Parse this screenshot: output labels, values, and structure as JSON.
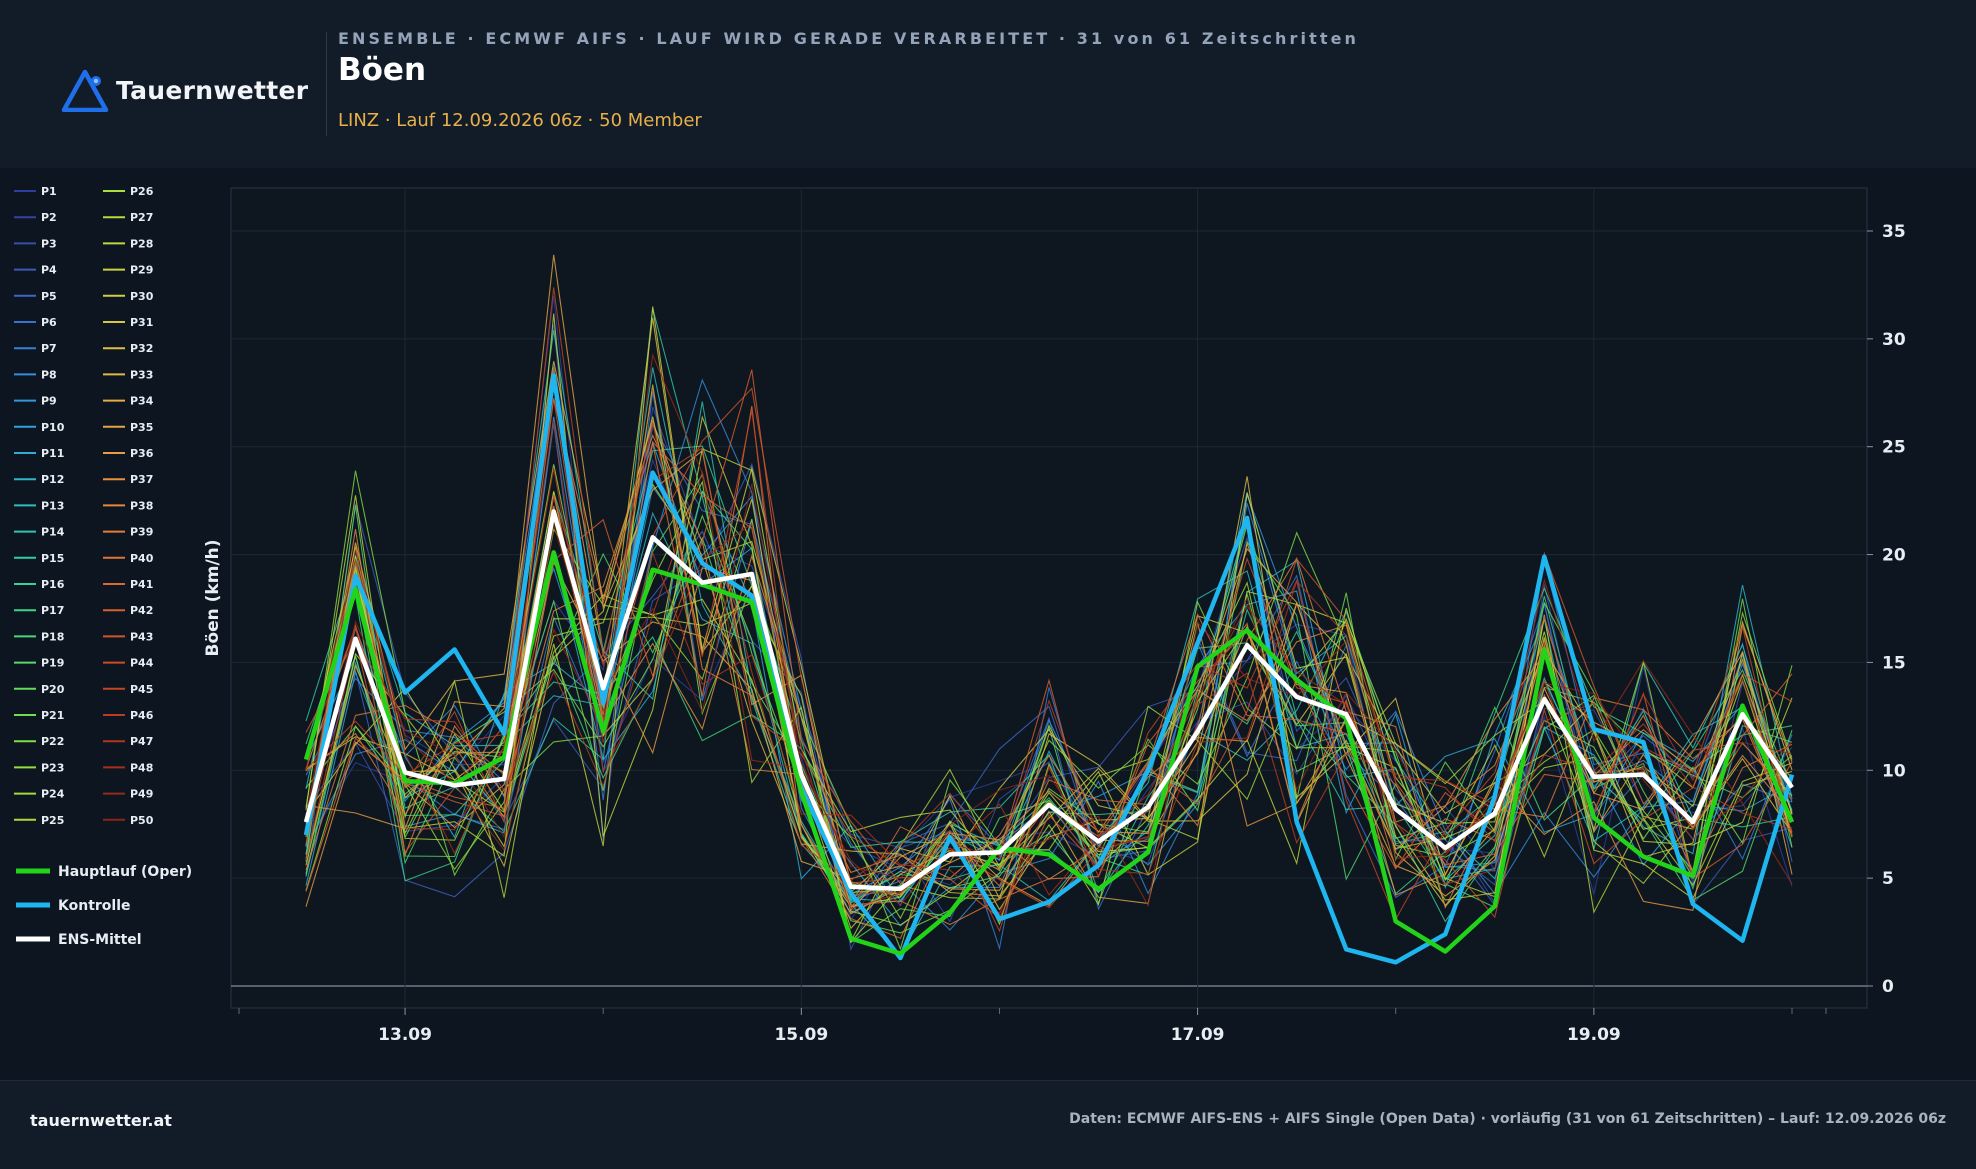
{
  "header": {
    "brand": "Tauernwetter",
    "supertitle": "ENSEMBLE · ECMWF AIFS · LAUF WIRD GERADE VERARBEITET · 31 von 61 Zeitschritten",
    "title": "Böen",
    "subtitle": "LINZ · Lauf 12.09.2026 06z · 50 Member"
  },
  "footer": {
    "left": "tauernwetter.at",
    "right": "Daten: ECMWF AIFS-ENS + AIFS Single (Open Data) · vorläufig (31 von 61 Zeitschritten) – Lauf: 12.09.2026 06z"
  },
  "colors": {
    "background": "#0d1520",
    "panel": "#121c28",
    "accent": "#1f6feb",
    "oper": "#22d31a",
    "control": "#1fb6f0",
    "ens_mean": "#ffffff",
    "subtitle": "#e8b04a"
  },
  "chart_data": {
    "type": "line",
    "ylabel": "Böen (km/h)",
    "ylim": [
      0,
      37
    ],
    "yticks": [
      0,
      5,
      10,
      15,
      20,
      25,
      30,
      35
    ],
    "xticks": [
      "13.09",
      "15.09",
      "17.09",
      "19.09"
    ],
    "x": [
      "12.09 12z",
      "12.09 18z",
      "13.09 00z",
      "13.09 06z",
      "13.09 12z",
      "13.09 18z",
      "14.09 00z",
      "14.09 06z",
      "14.09 12z",
      "14.09 18z",
      "15.09 00z",
      "15.09 06z",
      "15.09 12z",
      "15.09 18z",
      "16.09 00z",
      "16.09 06z",
      "16.09 12z",
      "16.09 18z",
      "17.09 00z",
      "17.09 06z",
      "17.09 12z",
      "17.09 18z",
      "18.09 00z",
      "18.09 06z",
      "18.09 12z",
      "18.09 18z",
      "19.09 00z",
      "19.09 06z",
      "19.09 12z",
      "19.09 18z",
      "20.09 00z"
    ],
    "grid": true,
    "legend_position": "left",
    "highlight_series": [
      {
        "name": "Hauptlauf (Oper)",
        "color": "#22d31a",
        "values": [
          10.5,
          18.4,
          9.5,
          9.4,
          10.6,
          20.1,
          11.8,
          19.3,
          18.6,
          17.8,
          9.0,
          2.2,
          1.5,
          3.4,
          6.4,
          6.1,
          4.5,
          6.2,
          14.8,
          16.5,
          14.2,
          12.4,
          3.0,
          1.6,
          3.7,
          15.6,
          7.8,
          6.0,
          5.1,
          13.0,
          7.6
        ]
      },
      {
        "name": "Kontrolle",
        "color": "#1fb6f0",
        "values": [
          7.0,
          19.0,
          13.6,
          15.6,
          11.7,
          28.3,
          13.1,
          23.8,
          19.6,
          18.1,
          9.2,
          4.3,
          1.3,
          6.9,
          3.1,
          3.9,
          5.6,
          10.0,
          15.9,
          21.7,
          7.6,
          1.7,
          1.1,
          2.4,
          8.8,
          19.9,
          11.9,
          11.3,
          3.8,
          2.1,
          9.8
        ]
      },
      {
        "name": "ENS-Mittel",
        "color": "#ffffff",
        "values": [
          7.6,
          16.1,
          9.9,
          9.3,
          9.6,
          22.0,
          13.8,
          20.8,
          18.7,
          19.1,
          9.8,
          4.6,
          4.5,
          6.1,
          6.2,
          8.4,
          6.7,
          8.3,
          11.8,
          15.8,
          13.4,
          12.6,
          8.2,
          6.4,
          8.0,
          13.3,
          9.7,
          9.8,
          7.6,
          12.6,
          9.2
        ]
      }
    ],
    "members": [
      {
        "name": "P1",
        "color": "#2c3e9e"
      },
      {
        "name": "P2",
        "color": "#33449f"
      },
      {
        "name": "P3",
        "color": "#3a4eab"
      },
      {
        "name": "P4",
        "color": "#3d5ab8"
      },
      {
        "name": "P5",
        "color": "#3d66c5"
      },
      {
        "name": "P6",
        "color": "#3c72cf"
      },
      {
        "name": "P7",
        "color": "#3a7fd6"
      },
      {
        "name": "P8",
        "color": "#378cdb"
      },
      {
        "name": "P9",
        "color": "#3497dc"
      },
      {
        "name": "P10",
        "color": "#31a2da"
      },
      {
        "name": "P11",
        "color": "#2fadd4"
      },
      {
        "name": "P12",
        "color": "#2db6ca"
      },
      {
        "name": "P13",
        "color": "#2dbebe"
      },
      {
        "name": "P14",
        "color": "#2fc5b1"
      },
      {
        "name": "P15",
        "color": "#33cba3"
      },
      {
        "name": "P16",
        "color": "#38d094"
      },
      {
        "name": "P17",
        "color": "#40d485"
      },
      {
        "name": "P18",
        "color": "#4ad776"
      },
      {
        "name": "P19",
        "color": "#56da68"
      },
      {
        "name": "P20",
        "color": "#63dc5a"
      },
      {
        "name": "P21",
        "color": "#72dd4e"
      },
      {
        "name": "P22",
        "color": "#82dd44"
      },
      {
        "name": "P23",
        "color": "#92dc3d"
      },
      {
        "name": "P24",
        "color": "#a2da39"
      },
      {
        "name": "P25",
        "color": "#b1d738"
      },
      {
        "name": "P26",
        "color": "#a8df3a"
      },
      {
        "name": "P27",
        "color": "#b4dc3b"
      },
      {
        "name": "P28",
        "color": "#bed83d"
      },
      {
        "name": "P29",
        "color": "#c8d33f"
      },
      {
        "name": "P30",
        "color": "#d0cd41"
      },
      {
        "name": "P31",
        "color": "#d7c643"
      },
      {
        "name": "P32",
        "color": "#ddbf44"
      },
      {
        "name": "P33",
        "color": "#e1b745"
      },
      {
        "name": "P34",
        "color": "#e4ae45"
      },
      {
        "name": "P35",
        "color": "#e6a544"
      },
      {
        "name": "P36",
        "color": "#e79b42"
      },
      {
        "name": "P37",
        "color": "#e79140"
      },
      {
        "name": "P38",
        "color": "#e6873d"
      },
      {
        "name": "P39",
        "color": "#e47d3a"
      },
      {
        "name": "P40",
        "color": "#e17336"
      },
      {
        "name": "P41",
        "color": "#dd6932"
      },
      {
        "name": "P42",
        "color": "#d85f2e"
      },
      {
        "name": "P43",
        "color": "#d2562a"
      },
      {
        "name": "P44",
        "color": "#cb4d26"
      },
      {
        "name": "P45",
        "color": "#c34522"
      },
      {
        "name": "P46",
        "color": "#ba3d1f"
      },
      {
        "name": "P47",
        "color": "#b0361c"
      },
      {
        "name": "P48",
        "color": "#a53019"
      },
      {
        "name": "P49",
        "color": "#992a17"
      },
      {
        "name": "P50",
        "color": "#8c2515"
      }
    ]
  }
}
